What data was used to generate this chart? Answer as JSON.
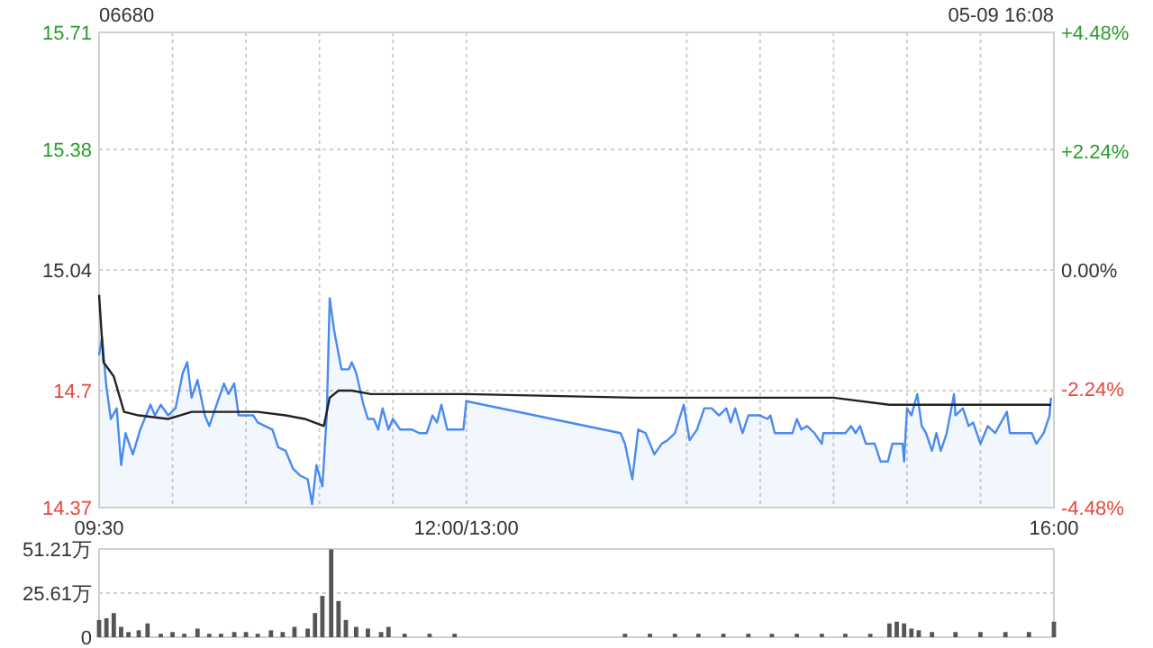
{
  "chart_data": [
    {
      "type": "area",
      "title": "06680",
      "subtitle": "05-09 16:08",
      "xlim": [
        9.5,
        16
      ],
      "xticks": [
        {
          "value": 9.5,
          "label": "09:30"
        },
        {
          "value": 10,
          "label": null
        },
        {
          "value": 10.5,
          "label": null
        },
        {
          "value": 11,
          "label": null
        },
        {
          "value": 11.5,
          "label": null
        },
        {
          "value": 12,
          "label": "12:00/13:00"
        },
        {
          "value": 13.5,
          "label": null
        },
        {
          "value": 14,
          "label": null
        },
        {
          "value": 14.5,
          "label": null
        },
        {
          "value": 15,
          "label": null
        },
        {
          "value": 15.5,
          "label": null
        },
        {
          "value": 16,
          "label": "16:00"
        }
      ],
      "ylim": [
        14.37,
        15.71
      ],
      "yticks": [
        14.37,
        14.7,
        15.04,
        15.38,
        15.71
      ],
      "y2lim": [
        -4.48,
        4.48
      ],
      "y2ticks": [
        {
          "value": -4.48,
          "label": "-4.48%"
        },
        {
          "value": -2.24,
          "label": "-2.24%"
        },
        {
          "value": 0,
          "label": "0.00%"
        },
        {
          "value": 2.24,
          "label": "+2.24%"
        },
        {
          "value": 4.48,
          "label": "+4.48%"
        }
      ],
      "grid": true,
      "series": [
        {
          "color": "#4a8af0",
          "x": [
            9.5,
            9.52,
            9.55,
            9.58,
            9.62,
            9.65,
            9.68,
            9.73,
            9.78,
            9.82,
            9.85,
            9.88,
            9.92,
            9.97,
            10.02,
            10.07,
            10.1,
            10.13,
            10.17,
            10.22,
            10.25,
            10.3,
            10.35,
            10.38,
            10.42,
            10.45,
            10.55,
            10.58,
            10.68,
            10.72,
            10.77,
            10.82,
            10.87,
            10.92,
            10.95,
            10.98,
            11.02,
            11.05,
            11.07,
            11.1,
            11.15,
            11.2,
            11.22,
            11.25,
            11.3,
            11.33,
            11.37,
            11.4,
            11.43,
            11.47,
            11.5,
            11.55,
            11.63,
            11.68,
            11.73,
            11.77,
            11.8,
            11.83,
            11.87,
            11.92,
            11.98,
            12,
            13.05,
            13.08,
            13.13,
            13.17,
            13.22,
            13.25,
            13.28,
            13.33,
            13.37,
            13.42,
            13.48,
            13.52,
            13.57,
            13.62,
            13.67,
            13.72,
            13.77,
            13.8,
            13.83,
            13.88,
            13.92,
            14,
            14.05,
            14.07,
            14.1,
            14.22,
            14.25,
            14.28,
            14.32,
            14.37,
            14.42,
            14.43,
            14.58,
            14.62,
            14.65,
            14.68,
            14.72,
            14.78,
            14.82,
            14.87,
            14.9,
            14.97,
            14.98,
            15,
            15.03,
            15.07,
            15.1,
            15.13,
            15.17,
            15.2,
            15.23,
            15.27,
            15.32,
            15.33,
            15.38,
            15.42,
            15.45,
            15.5,
            15.55,
            15.6,
            15.68,
            15.7,
            15.85,
            15.88,
            15.93,
            15.97,
            15.98
          ],
          "values": [
            14.8,
            14.85,
            14.71,
            14.62,
            14.65,
            14.49,
            14.58,
            14.52,
            14.59,
            14.63,
            14.66,
            14.63,
            14.66,
            14.63,
            14.65,
            14.75,
            14.78,
            14.68,
            14.73,
            14.63,
            14.6,
            14.66,
            14.72,
            14.69,
            14.72,
            14.63,
            14.63,
            14.61,
            14.59,
            14.54,
            14.53,
            14.48,
            14.46,
            14.45,
            14.38,
            14.49,
            14.43,
            14.63,
            14.96,
            14.87,
            14.76,
            14.76,
            14.78,
            14.75,
            14.66,
            14.62,
            14.62,
            14.59,
            14.65,
            14.59,
            14.62,
            14.59,
            14.59,
            14.58,
            14.58,
            14.63,
            14.61,
            14.66,
            14.59,
            14.59,
            14.59,
            14.67,
            14.58,
            14.55,
            14.45,
            14.59,
            14.58,
            14.55,
            14.52,
            14.55,
            14.56,
            14.58,
            14.66,
            14.56,
            14.59,
            14.65,
            14.65,
            14.63,
            14.65,
            14.61,
            14.65,
            14.58,
            14.63,
            14.63,
            14.62,
            14.63,
            14.58,
            14.58,
            14.62,
            14.59,
            14.6,
            14.58,
            14.55,
            14.58,
            14.58,
            14.6,
            14.58,
            14.6,
            14.55,
            14.55,
            14.5,
            14.5,
            14.55,
            14.55,
            14.5,
            14.65,
            14.63,
            14.69,
            14.6,
            14.58,
            14.53,
            14.58,
            14.53,
            14.58,
            14.69,
            14.63,
            14.65,
            14.6,
            14.61,
            14.55,
            14.6,
            14.58,
            14.64,
            14.58,
            14.58,
            14.55,
            14.58,
            14.63,
            14.68
          ]
        },
        {
          "type": "line",
          "color": "#222222",
          "x": [
            9.5,
            9.53,
            9.6,
            9.67,
            9.77,
            9.97,
            10.05,
            10.13,
            10.45,
            10.58,
            10.77,
            10.9,
            11.03,
            11.07,
            11.13,
            11.22,
            11.35,
            12,
            13.15,
            14.08,
            14.5,
            14.88,
            15.98
          ],
          "values": [
            14.97,
            14.78,
            14.74,
            14.64,
            14.63,
            14.62,
            14.63,
            14.64,
            14.64,
            14.64,
            14.63,
            14.62,
            14.6,
            14.68,
            14.7,
            14.7,
            14.69,
            14.69,
            14.68,
            14.68,
            14.68,
            14.66,
            14.66
          ]
        }
      ]
    },
    {
      "type": "bar",
      "xlim": [
        9.5,
        16
      ],
      "ylim": [
        0,
        51.21
      ],
      "yticks": [
        0,
        {
          "value": 25.61,
          "label": "25.61万"
        },
        {
          "value": 51.21,
          "label": "51.21万"
        }
      ],
      "grid": "y",
      "tick_labels": "y",
      "series": [
        {
          "color": "#555555",
          "x": [
            9.5,
            9.55,
            9.6,
            9.65,
            9.7,
            9.77,
            9.83,
            9.92,
            10,
            10.08,
            10.17,
            10.25,
            10.33,
            10.42,
            10.5,
            10.58,
            10.67,
            10.75,
            10.83,
            10.92,
            10.97,
            11.02,
            11.08,
            11.13,
            11.18,
            11.25,
            11.33,
            11.42,
            11.47,
            11.58,
            11.75,
            11.92,
            13.08,
            13.25,
            13.42,
            13.58,
            13.75,
            13.92,
            14.08,
            14.25,
            14.42,
            14.58,
            14.75,
            14.88,
            14.93,
            14.98,
            15.03,
            15.08,
            15.17,
            15.33,
            15.5,
            15.67,
            15.83,
            16
          ],
          "values": [
            10,
            11,
            14,
            6,
            3,
            4,
            8,
            2,
            3,
            2,
            5,
            2,
            2,
            3,
            3,
            2,
            4,
            3,
            6,
            5,
            14,
            24,
            51,
            21,
            10,
            6,
            5,
            3,
            6,
            2,
            2,
            2,
            2,
            2,
            2,
            2,
            2,
            2,
            2,
            2,
            2,
            2,
            2,
            8,
            9,
            8,
            5,
            4,
            3,
            3,
            3,
            3,
            3,
            9
          ]
        }
      ]
    }
  ]
}
